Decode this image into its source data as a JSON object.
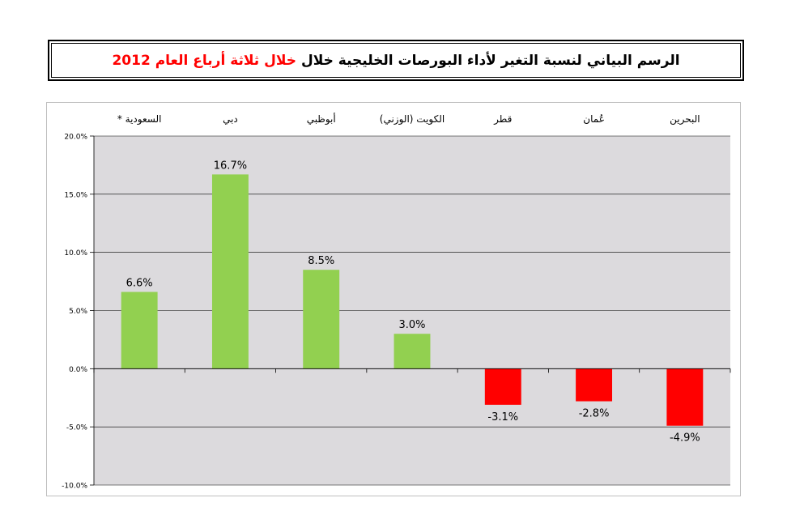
{
  "title": {
    "main": "الرسم البياني لنسبة التغير لأداء البورصات الخليجية خلال",
    "highlight": "خلال ثلاثة أرباع العام 2012"
  },
  "colors": {
    "positive": "#92d050",
    "negative": "#ff0000",
    "plot_background": "#dcdadd",
    "gridline": "#000000",
    "title_highlight": "#ff0000"
  },
  "chart_data": {
    "type": "bar",
    "categories": [
      "السعودية *",
      "دبي",
      "أبوظبي",
      "الكويت (الوزني)",
      "قطر",
      "عُمان",
      "البحرين"
    ],
    "values": [
      6.6,
      16.7,
      8.5,
      3.0,
      -3.1,
      -2.8,
      -4.9
    ],
    "data_labels": [
      "6.6%",
      "16.7%",
      "8.5%",
      "3.0%",
      "-3.1%",
      "-2.8%",
      "-4.9%"
    ],
    "yticks": [
      "20.0%",
      "15.0%",
      "10.0%",
      "5.0%",
      "0.0%",
      "-5.0%",
      "-10.0%"
    ],
    "ytick_values": [
      20,
      15,
      10,
      5,
      0,
      -5,
      -10
    ],
    "ylim": [
      -10,
      20
    ],
    "category_axis_position": "top",
    "grid": true
  }
}
